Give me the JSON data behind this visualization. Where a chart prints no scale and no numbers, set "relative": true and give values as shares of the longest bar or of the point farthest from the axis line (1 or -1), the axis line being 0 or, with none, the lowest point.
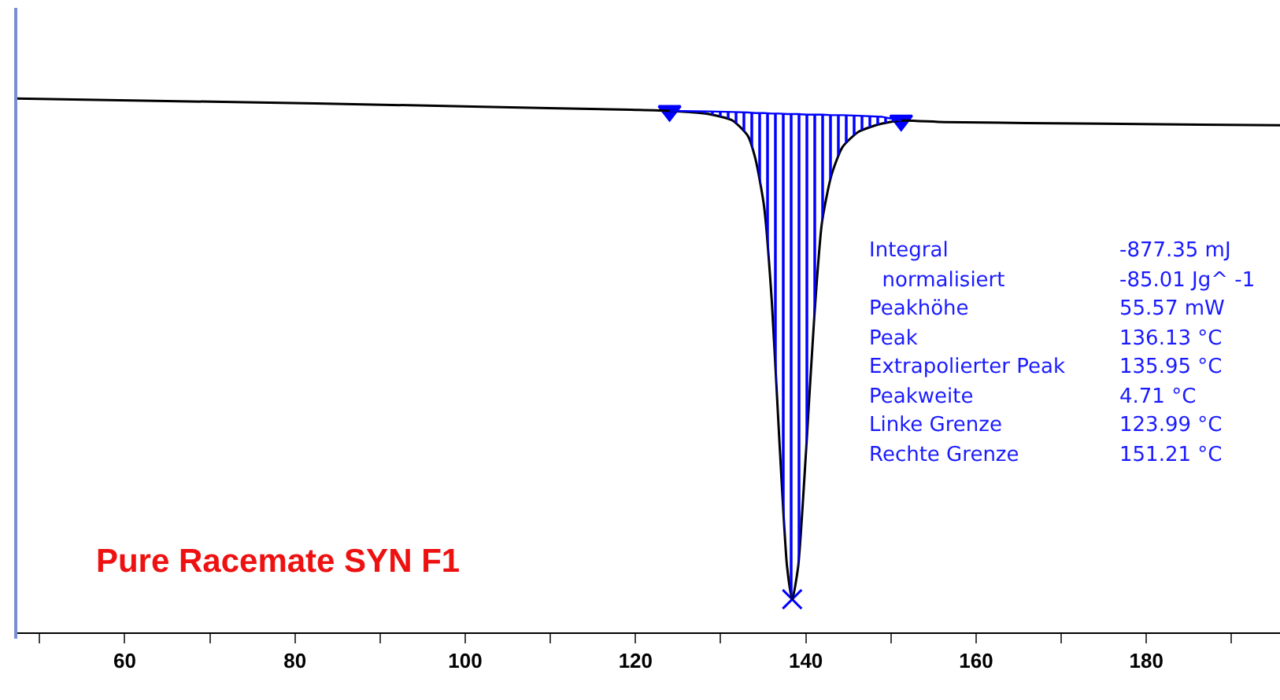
{
  "chart_data": {
    "type": "line",
    "title": "Pure Racemate SYN F1",
    "relative": true,
    "grid": false,
    "xlim": [
      47.2,
      195.7
    ],
    "xticks": [
      {
        "value": 50,
        "label": null
      },
      60,
      {
        "value": 70,
        "label": null
      },
      80,
      {
        "value": 90,
        "label": null
      },
      100,
      {
        "value": 110,
        "label": null
      },
      120,
      {
        "value": 130,
        "label": null
      },
      140,
      {
        "value": 150,
        "label": null
      },
      160,
      {
        "value": 170,
        "label": null
      },
      180,
      {
        "value": 190,
        "label": null
      }
    ],
    "series": [
      {
        "type": "area",
        "color": "#0000ff",
        "x": [
          124.0,
          128.6,
          131.4,
          133.2,
          134.1,
          135.1,
          136.0,
          136.9,
          137.8,
          138.4,
          139.1,
          140.1,
          141.0,
          141.9,
          143.0,
          144.3,
          146.2,
          148.9,
          151.2
        ],
        "values": [
          0.977,
          0.976,
          0.975,
          0.974,
          0.973,
          0.973,
          0.972,
          0.972,
          0.971,
          0.971,
          0.971,
          0.97,
          0.97,
          0.97,
          0.969,
          0.969,
          0.968,
          0.966,
          0.959
        ]
      },
      {
        "color": "#000000",
        "marker": "none",
        "x": [
          47.2,
          82.4,
          100.9,
          119.4,
          124.0,
          128.6,
          131.4,
          133.2,
          134.1,
          135.1,
          136.0,
          136.9,
          137.8,
          138.4,
          139.1,
          140.1,
          141.0,
          141.9,
          143.0,
          144.3,
          146.2,
          148.9,
          151.2,
          156.3,
          174.8,
          195.7
        ],
        "values": [
          1.0,
          0.991,
          0.985,
          0.979,
          0.977,
          0.971,
          0.959,
          0.93,
          0.886,
          0.798,
          0.622,
          0.358,
          0.123,
          0.062,
          0.123,
          0.358,
          0.592,
          0.768,
          0.856,
          0.909,
          0.938,
          0.953,
          0.959,
          0.956,
          0.953,
          0.95
        ]
      },
      {
        "type": "scatter",
        "color": "#0000ff",
        "marker": "cross",
        "x": [
          138.4
        ],
        "values": [
          0.062
        ]
      },
      {
        "type": "scatter",
        "color": "#0000ff",
        "marker": "triangle",
        "x": [
          124.0,
          151.2
        ],
        "values": [
          0.977,
          0.959
        ]
      }
    ],
    "annotations": [
      "Integral",
      "-877.35 mJ",
      "  normalisiert",
      "-85.01 Jg^ -1",
      "Peakhöhe",
      "55.57 mW",
      "Peak",
      "136.13 °C",
      "Extrapolierter Peak",
      "135.95 °C",
      "Peakweite",
      "4.71 °C",
      "Linke Grenze",
      "123.99 °C",
      "Rechte Grenze",
      "151.21 °C"
    ]
  }
}
